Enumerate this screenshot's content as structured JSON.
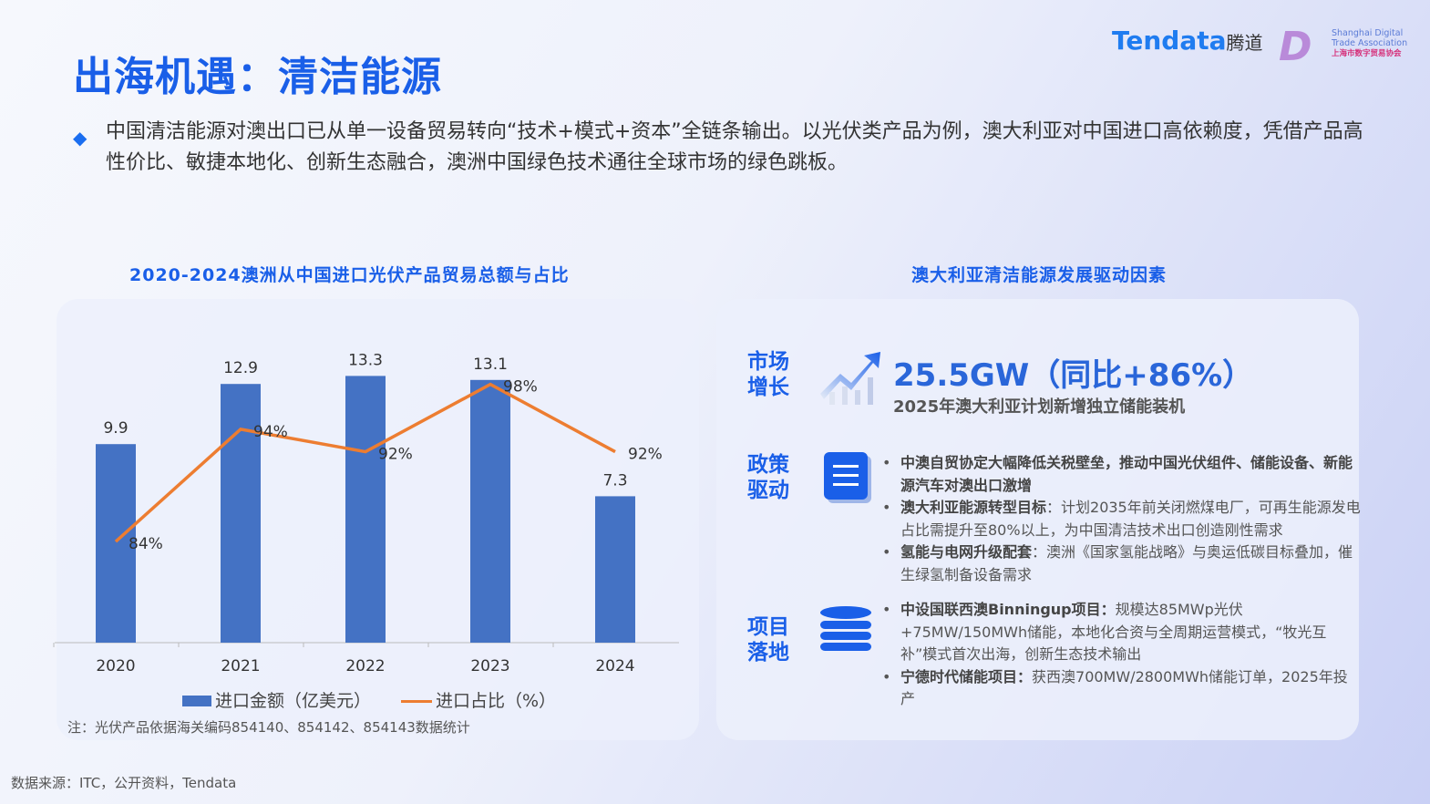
{
  "title": "出海机遇：清洁能源",
  "logos": {
    "tendata": "Tendata",
    "tendata_cn": "腾道",
    "assoc_en1": "Shanghai Digital",
    "assoc_en2": "Trade Association",
    "assoc_cn": "上海市数字贸易协会"
  },
  "lead": "中国清洁能源对澳出口已从单一设备贸易转向“技术+模式+资本”全链条输出。以光伏类产品为例，澳大利亚对中国进口高依赖度，凭借产品高性价比、敏捷本地化、创新生态融合，澳洲中国绿色技术通往全球市场的绿色跳板。",
  "chart_title": "2020-2024澳洲从中国进口光伏产品贸易总额与占比",
  "right_title": "澳大利亚清洁能源发展驱动因素",
  "chart_data": {
    "type": "bar+line",
    "categories": [
      "2020",
      "2021",
      "2022",
      "2023",
      "2024"
    ],
    "series": [
      {
        "name": "进口金额（亿美元）",
        "type": "bar",
        "values": [
          9.9,
          12.9,
          13.3,
          13.1,
          7.3
        ],
        "labels": [
          "9.9",
          "12.9",
          "13.3",
          "13.1",
          "7.3"
        ],
        "color": "#4472c4"
      },
      {
        "name": "进口占比（%）",
        "type": "line",
        "values": [
          84,
          94,
          92,
          98,
          92
        ],
        "labels": [
          "84%",
          "94%",
          "92%",
          "98%",
          "92%"
        ],
        "color": "#ed7d31"
      }
    ],
    "ylim": [
      0,
      14
    ],
    "ylim_secondary": [
      75,
      100
    ],
    "grid": false,
    "legend": "bottom"
  },
  "note": "注：光伏产品依据海关编码854140、854142、854143数据统计",
  "drivers": {
    "market": {
      "label1": "市场",
      "label2": "增长",
      "headline": "25.5GW（同比+86%）",
      "sub": "2025年澳大利亚计划新增独立储能装机"
    },
    "policy": {
      "label1": "政策",
      "label2": "驱动",
      "items": [
        {
          "bold": "中澳自贸协定大幅降低关税壁垒，推动中国光伏组件、储能设备、新能源汽车对澳出口激增",
          "text": ""
        },
        {
          "bold": "澳大利亚能源转型目标",
          "text": "：计划2035年前关闭燃煤电厂，可再生能源发电占比需提升至80%以上，为中国清洁技术出口创造刚性需求"
        },
        {
          "bold": "氢能与电网升级配套",
          "text": "：澳洲《国家氢能战略》与奥运低碳目标叠加，催生绿氢制备设备需求"
        }
      ]
    },
    "project": {
      "label1": "项目",
      "label2": "落地",
      "items": [
        {
          "bold": "中设国联西澳Binningup项目：",
          "text": "规模达85MWp光伏+75MW/150MWh储能，本地化合资与全周期运营模式，“牧光互补”模式首次出海，创新生态技术输出"
        },
        {
          "bold": "宁德时代储能项目：",
          "text": "获西澳700MW/2800MWh储能订单，2025年投产"
        }
      ]
    }
  },
  "source": "数据来源：ITC，公开资料，Tendata"
}
